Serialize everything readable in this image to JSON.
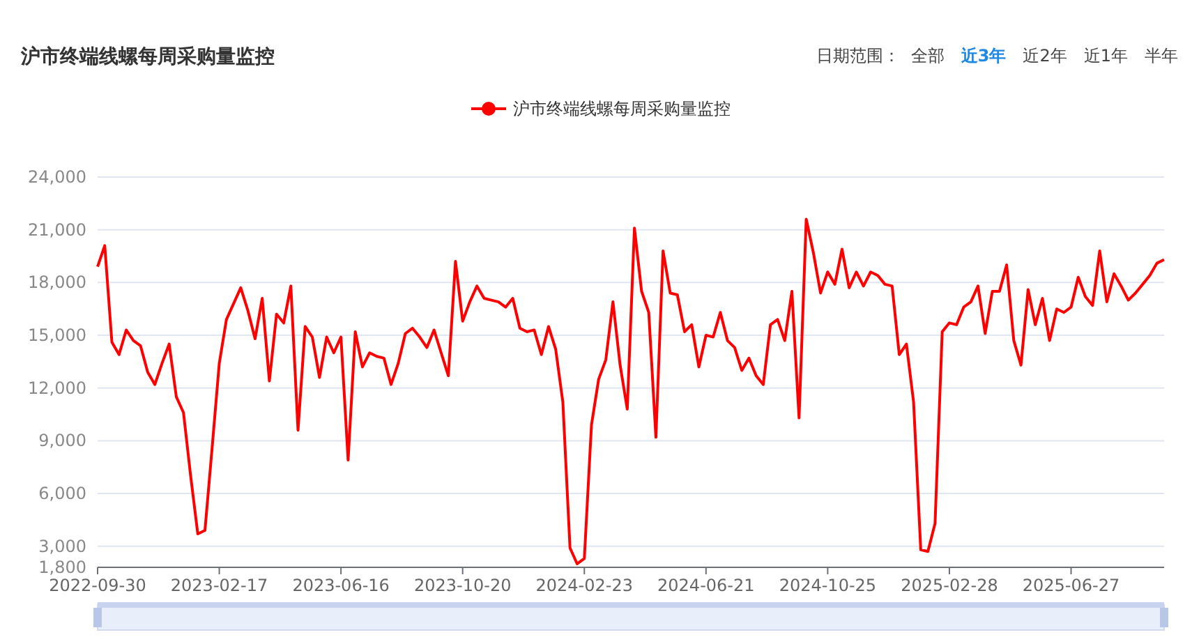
{
  "chart_data": {
    "type": "line",
    "title": "沪市终端线螺每周采购量监控",
    "annotations": [
      "日期范围：",
      "全部",
      "近3年",
      "近2年",
      "近1年",
      "半年"
    ],
    "categories": [
      "2022-09-30",
      null,
      null,
      null,
      null,
      null,
      null,
      null,
      null,
      null,
      null,
      null,
      null,
      null,
      null,
      null,
      null,
      "2023-02-17",
      null,
      null,
      null,
      null,
      null,
      null,
      null,
      null,
      null,
      null,
      null,
      null,
      null,
      null,
      null,
      null,
      "2023-06-16",
      null,
      null,
      null,
      null,
      null,
      null,
      null,
      null,
      null,
      null,
      null,
      null,
      null,
      null,
      null,
      null,
      "2023-10-20",
      null,
      null,
      null,
      null,
      null,
      null,
      null,
      null,
      null,
      null,
      null,
      null,
      null,
      null,
      null,
      null,
      "2024-02-23",
      null,
      null,
      null,
      null,
      null,
      null,
      null,
      null,
      null,
      null,
      null,
      null,
      null,
      null,
      null,
      null,
      "2024-06-21",
      null,
      null,
      null,
      null,
      null,
      null,
      null,
      null,
      null,
      null,
      null,
      null,
      null,
      null,
      null,
      null,
      "2024-10-25",
      null,
      null,
      null,
      null,
      null,
      null,
      null,
      null,
      null,
      null,
      null,
      null,
      null,
      null,
      null,
      null,
      "2025-02-28",
      null,
      null,
      null,
      null,
      null,
      null,
      null,
      null,
      null,
      null,
      null,
      null,
      null,
      null,
      null,
      null,
      "2025-06-27",
      null,
      null,
      null,
      null,
      null,
      null,
      null,
      null,
      null,
      null,
      null,
      null,
      null
    ],
    "series": [
      {
        "name": "沪市终端线螺每周采购量监控",
        "color": "#ff0000",
        "values": [
          18900,
          20100,
          14600,
          13900,
          15300,
          14700,
          14400,
          12900,
          12200,
          13400,
          14500,
          11500,
          10600,
          7000,
          3700,
          3900,
          8600,
          13400,
          15900,
          16800,
          17700,
          16400,
          14800,
          17100,
          12400,
          16200,
          15700,
          17800,
          9600,
          15500,
          14900,
          12600,
          14900,
          14000,
          14900,
          7900,
          15200,
          13200,
          14000,
          13800,
          13700,
          12200,
          13400,
          15100,
          15400,
          14900,
          14300,
          15300,
          14000,
          12700,
          19200,
          15800,
          16900,
          17800,
          17100,
          17000,
          16900,
          16600,
          17100,
          15400,
          15200,
          15300,
          13900,
          15500,
          14200,
          11200,
          2900,
          2000,
          2300,
          9900,
          12500,
          13600,
          16900,
          13300,
          10800,
          21100,
          17500,
          16300,
          9200,
          19800,
          17400,
          17300,
          15200,
          15600,
          13200,
          15000,
          14900,
          16300,
          14700,
          14300,
          13000,
          13700,
          12700,
          12200,
          15600,
          15900,
          14700,
          17500,
          10300,
          21600,
          19700,
          17400,
          18600,
          17900,
          19900,
          17700,
          18600,
          17800,
          18600,
          18400,
          17900,
          17800,
          13900,
          14500,
          11200,
          2800,
          2700,
          4300,
          15200,
          15700,
          15600,
          16600,
          16900,
          17800,
          15100,
          17500,
          17500,
          19000,
          14700,
          13300,
          17600,
          15600,
          17100,
          14700,
          16500,
          16300,
          16600,
          18300,
          17200,
          16700,
          19800,
          16900,
          18500,
          17800,
          17000,
          17400,
          17900,
          18400,
          19100,
          19300
        ]
      }
    ],
    "ylim": [
      1800,
      24000
    ],
    "yticks": [
      {
        "value": 1800,
        "label": "1,800"
      },
      {
        "value": 3000,
        "label": "3,000"
      },
      {
        "value": 6000,
        "label": "6,000"
      },
      {
        "value": 9000,
        "label": "9,000"
      },
      {
        "value": 12000,
        "label": "12,000"
      },
      {
        "value": 15000,
        "label": "15,000"
      },
      {
        "value": 18000,
        "label": "18,000"
      },
      {
        "value": 21000,
        "label": "21,000"
      },
      {
        "value": 24000,
        "label": "24,000"
      }
    ],
    "grid": "y",
    "legend": "top",
    "line_style": "solid"
  }
}
